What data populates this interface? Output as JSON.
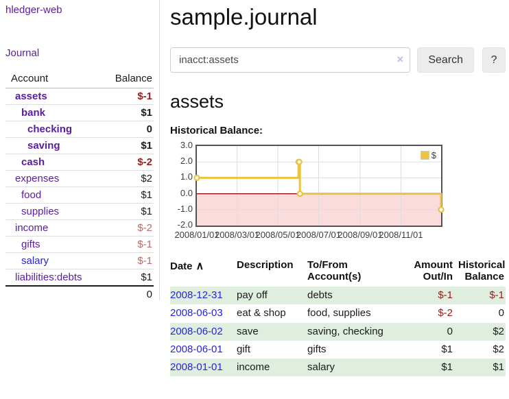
{
  "sidebar": {
    "brand": "hledger-web",
    "journal_link": "Journal",
    "account_header": "Account",
    "balance_header": "Balance",
    "accounts": [
      {
        "name": "assets",
        "balance": "$-1",
        "tone": "strong"
      },
      {
        "name": "bank",
        "balance": "$1",
        "tone": "plain"
      },
      {
        "name": "checking",
        "balance": "0",
        "tone": "plain"
      },
      {
        "name": "saving",
        "balance": "$1",
        "tone": "plain"
      },
      {
        "name": "cash",
        "balance": "$-2",
        "tone": "strong"
      },
      {
        "name": "expenses",
        "balance": "$2",
        "tone": "plain"
      },
      {
        "name": "food",
        "balance": "$1",
        "tone": "plain"
      },
      {
        "name": "supplies",
        "balance": "$1",
        "tone": "plain"
      },
      {
        "name": "income",
        "balance": "$-2",
        "tone": "soft"
      },
      {
        "name": "gifts",
        "balance": "$-1",
        "tone": "soft"
      },
      {
        "name": "salary",
        "balance": "$-1",
        "tone": "soft",
        "variant": "blue"
      },
      {
        "name": "liabilities:debts",
        "balance": "$1",
        "tone": "plain"
      }
    ],
    "total": "0"
  },
  "header": {
    "title": "sample.journal"
  },
  "search": {
    "value": "inacct:assets",
    "clear_icon": "×",
    "button_label": "Search",
    "help_label": "?"
  },
  "main": {
    "heading": "assets",
    "chart_label": "Historical Balance:"
  },
  "chart_data": {
    "type": "line",
    "title": "Historical Balance:",
    "legend": "$",
    "legend_position": "top-right",
    "grid": true,
    "step": true,
    "x_start": "2008-01-01",
    "x_span_days": 365,
    "ylim": [
      -2,
      3
    ],
    "y_ticks": [
      3.0,
      2.0,
      1.0,
      0.0,
      -1.0,
      -2.0
    ],
    "x_ticks": [
      "2008/01/01",
      "2008/03/01",
      "2008/05/01",
      "2008/07/01",
      "2008/09/01",
      "2008/11/01"
    ],
    "zero_line_color": "#8b0000",
    "negative_fill": "#fbdcdc",
    "grid_color": "#dddddd",
    "series": [
      {
        "name": "$",
        "color": "#edc240",
        "points": [
          [
            "2008-01-01",
            1
          ],
          [
            "2008-06-01",
            2
          ],
          [
            "2008-06-02",
            2
          ],
          [
            "2008-06-03",
            0
          ],
          [
            "2008-12-31",
            -1
          ]
        ]
      }
    ]
  },
  "transactions": {
    "headers": {
      "date": "Date",
      "sort_icon": "∧",
      "description": "Description",
      "account": "To/From Account(s)",
      "amount": "Amount Out/In",
      "balance": "Historical Balance"
    },
    "rows": [
      {
        "date": "2008-12-31",
        "description": "pay off",
        "accounts": "debts",
        "amount": "$-1",
        "amount_neg": "true",
        "balance": "$-1",
        "balance_neg": "true"
      },
      {
        "date": "2008-06-03",
        "description": "eat & shop",
        "accounts": "food, supplies",
        "amount": "$-2",
        "amount_neg": "true",
        "balance": "0",
        "balance_neg": "false"
      },
      {
        "date": "2008-06-02",
        "description": "save",
        "accounts": "saving, checking",
        "amount": "0",
        "amount_neg": "false",
        "balance": "$2",
        "balance_neg": "false"
      },
      {
        "date": "2008-06-01",
        "description": "gift",
        "accounts": "gifts",
        "amount": "$1",
        "amount_neg": "false",
        "balance": "$2",
        "balance_neg": "false"
      },
      {
        "date": "2008-01-01",
        "description": "income",
        "accounts": "salary",
        "amount": "$1",
        "amount_neg": "false",
        "balance": "$1",
        "balance_neg": "false"
      }
    ]
  }
}
